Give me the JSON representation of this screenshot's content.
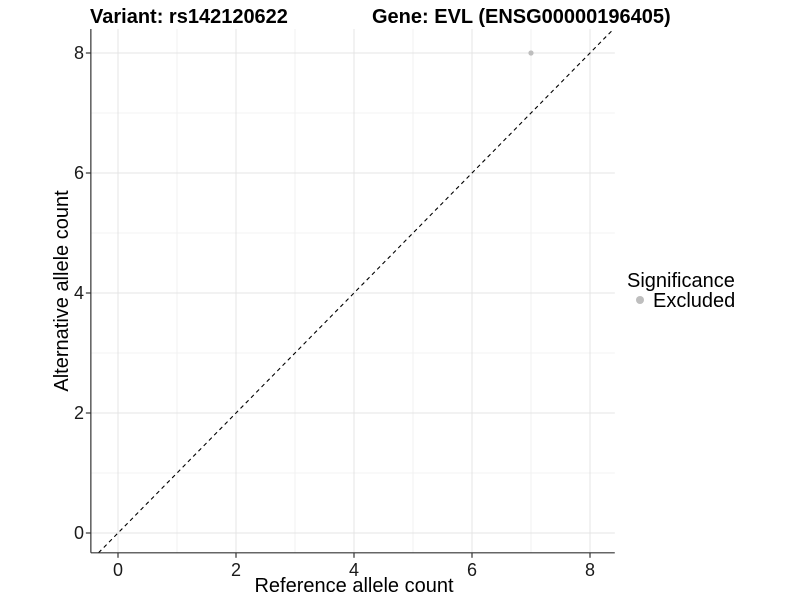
{
  "chart_data": {
    "type": "scatter",
    "titles": [
      "Variant: rs142120622",
      "Gene: EVL (ENSG00000196405)"
    ],
    "xlabel": "Reference allele count",
    "ylabel": "Alternative allele count",
    "xlim": [
      -0.46,
      8.42
    ],
    "ylim": [
      -0.33,
      8.4
    ],
    "xticks": [
      0,
      2,
      4,
      6,
      8
    ],
    "yticks": [
      0,
      2,
      4,
      6,
      8
    ],
    "minor_xticks": [
      1,
      3,
      5,
      7
    ],
    "minor_yticks": [
      1,
      3,
      5,
      7
    ],
    "grid": true,
    "reference_line": {
      "type": "identity",
      "style": "dashed",
      "color": "#000000",
      "dash": "4 3.5"
    },
    "series": [
      {
        "name": "Excluded",
        "color": "#bebebe",
        "points": [
          {
            "x": 7,
            "y": 8
          }
        ]
      }
    ],
    "legend": {
      "title": "Significance",
      "position": "right",
      "entries": [
        {
          "label": "Excluded",
          "color": "#bebebe"
        }
      ]
    },
    "colors": {
      "grid_major": "#e4e4e4",
      "grid_minor": "#efefef",
      "axis_line": "#333333",
      "tick_mark": "#333333",
      "tick_text": "#1a1a1a",
      "title_text": "#000000",
      "background": "#ffffff"
    }
  }
}
